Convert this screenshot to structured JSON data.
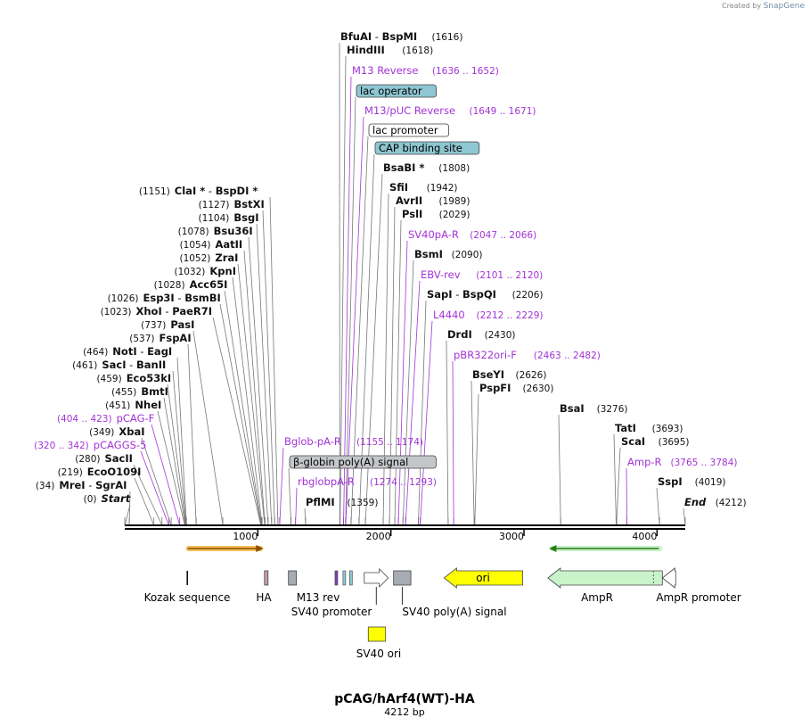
{
  "credit": {
    "prefix": "Created by",
    "brand": "SnapGene"
  },
  "title": "pCAG/hArf4(WT)-HA",
  "subtitle": "4212 bp",
  "sequence": {
    "length": 4212
  },
  "ruler": [
    {
      "bp": 1000,
      "label": "1000"
    },
    {
      "bp": 2000,
      "label": "2000"
    },
    {
      "bp": 3000,
      "label": "3000"
    },
    {
      "bp": 4000,
      "label": "4000"
    }
  ],
  "colors": {
    "enzyme": "#111111",
    "primer": "#a333d6",
    "line": "#777777",
    "feature_blue": "#8ec6d2",
    "feature_grey": "#c4c6ca",
    "amp_green": "#c9f3c9",
    "ori_yellow": "#ffff00"
  },
  "left_labels": [
    {
      "kind": "enzyme",
      "num": "(0)",
      "parts": [
        {
          "t": "Start",
          "i": true
        }
      ],
      "pos": 0
    },
    {
      "kind": "enzyme",
      "num": "(34)",
      "parts": [
        {
          "t": "MreI"
        },
        {
          "t": " - ",
          "s": true
        },
        {
          "t": "SgrAI"
        }
      ],
      "pos": 34
    },
    {
      "kind": "enzyme",
      "num": "(219)",
      "parts": [
        {
          "t": "EcoO109I"
        }
      ],
      "pos": 219
    },
    {
      "kind": "enzyme",
      "num": "(280)",
      "parts": [
        {
          "t": "SacII"
        }
      ],
      "pos": 280
    },
    {
      "kind": "primer",
      "num": "(320 .. 342)",
      "parts": [
        {
          "t": "pCAGGS-5"
        }
      ],
      "pos": 331
    },
    {
      "kind": "enzyme",
      "num": "(349)",
      "parts": [
        {
          "t": "XbaI"
        }
      ],
      "pos": 349
    },
    {
      "kind": "primer",
      "num": "(404 .. 423)",
      "parts": [
        {
          "t": "pCAG-F"
        }
      ],
      "pos": 413
    },
    {
      "kind": "enzyme",
      "num": "(451)",
      "parts": [
        {
          "t": "NheI"
        }
      ],
      "pos": 451
    },
    {
      "kind": "enzyme",
      "num": "(455)",
      "parts": [
        {
          "t": "BmtI"
        }
      ],
      "pos": 455
    },
    {
      "kind": "enzyme",
      "num": "(459)",
      "parts": [
        {
          "t": "Eco53kI"
        }
      ],
      "pos": 459
    },
    {
      "kind": "enzyme",
      "num": "(461)",
      "parts": [
        {
          "t": "SacI"
        },
        {
          "t": " - ",
          "s": true
        },
        {
          "t": "BanII"
        }
      ],
      "pos": 461
    },
    {
      "kind": "enzyme",
      "num": "(464)",
      "parts": [
        {
          "t": "NotI"
        },
        {
          "t": " - ",
          "s": true
        },
        {
          "t": "EagI"
        }
      ],
      "pos": 464
    },
    {
      "kind": "enzyme",
      "num": "(537)",
      "parts": [
        {
          "t": "FspAI"
        }
      ],
      "pos": 537
    },
    {
      "kind": "enzyme",
      "num": "(737)",
      "parts": [
        {
          "t": "PasI"
        }
      ],
      "pos": 737
    },
    {
      "kind": "enzyme",
      "num": "(1023)",
      "parts": [
        {
          "t": "XhoI"
        },
        {
          "t": " - ",
          "s": true
        },
        {
          "t": "PaeR7I"
        }
      ],
      "pos": 1023
    },
    {
      "kind": "enzyme",
      "num": "(1026)",
      "parts": [
        {
          "t": "Esp3I"
        },
        {
          "t": " - ",
          "s": true
        },
        {
          "t": "BsmBI"
        }
      ],
      "pos": 1026
    },
    {
      "kind": "enzyme",
      "num": "(1028)",
      "parts": [
        {
          "t": "Acc65I"
        }
      ],
      "pos": 1028
    },
    {
      "kind": "enzyme",
      "num": "(1032)",
      "parts": [
        {
          "t": "KpnI"
        }
      ],
      "pos": 1032
    },
    {
      "kind": "enzyme",
      "num": "(1052)",
      "parts": [
        {
          "t": "ZraI"
        }
      ],
      "pos": 1052
    },
    {
      "kind": "enzyme",
      "num": "(1054)",
      "parts": [
        {
          "t": "AatII"
        }
      ],
      "pos": 1054
    },
    {
      "kind": "enzyme",
      "num": "(1078)",
      "parts": [
        {
          "t": "Bsu36I"
        }
      ],
      "pos": 1078
    },
    {
      "kind": "enzyme",
      "num": "(1104)",
      "parts": [
        {
          "t": "BsgI"
        }
      ],
      "pos": 1104
    },
    {
      "kind": "enzyme",
      "num": "(1127)",
      "parts": [
        {
          "t": "BstXI"
        }
      ],
      "pos": 1127
    },
    {
      "kind": "enzyme",
      "num": "(1151)",
      "parts": [
        {
          "t": "ClaI *"
        },
        {
          "t": " - ",
          "s": true
        },
        {
          "t": "BspDI *"
        }
      ],
      "pos": 1151
    }
  ],
  "right_labels": [
    {
      "kind": "enzyme",
      "parts": [
        {
          "t": "BfuAI"
        },
        {
          "t": " - ",
          "s": true
        },
        {
          "t": "BspMI"
        }
      ],
      "num": "(1616)",
      "pos": 1616
    },
    {
      "kind": "enzyme",
      "parts": [
        {
          "t": "HindIII"
        }
      ],
      "num": "(1618)",
      "pos": 1618
    },
    {
      "kind": "primer",
      "parts": [
        {
          "t": "M13 Reverse"
        }
      ],
      "num": "(1636 .. 1652)",
      "pos": 1644
    },
    {
      "kind": "box",
      "style": "blue",
      "parts": [
        {
          "t": "lac operator"
        }
      ],
      "pos": 1659
    },
    {
      "kind": "primer",
      "parts": [
        {
          "t": "M13/pUC Reverse"
        }
      ],
      "num": "(1649 .. 1671)",
      "pos": 1660
    },
    {
      "kind": "box",
      "style": "white",
      "parts": [
        {
          "t": "lac promoter"
        }
      ],
      "pos": 1700
    },
    {
      "kind": "box",
      "style": "blue",
      "parts": [
        {
          "t": "CAP binding site"
        }
      ],
      "pos": 1760
    },
    {
      "kind": "enzyme",
      "parts": [
        {
          "t": "BsaBI *"
        }
      ],
      "num": "(1808)",
      "pos": 1808
    },
    {
      "kind": "enzyme",
      "parts": [
        {
          "t": "SfiI"
        }
      ],
      "num": "(1942)",
      "pos": 1942
    },
    {
      "kind": "enzyme",
      "parts": [
        {
          "t": "AvrII"
        }
      ],
      "num": "(1989)",
      "pos": 1989
    },
    {
      "kind": "enzyme",
      "parts": [
        {
          "t": "PslI"
        }
      ],
      "num": "(2029)",
      "pos": 2029
    },
    {
      "kind": "primer",
      "parts": [
        {
          "t": "SV40pA-R"
        }
      ],
      "num": "(2047 .. 2066)",
      "pos": 2056
    },
    {
      "kind": "enzyme",
      "parts": [
        {
          "t": "BsmI"
        }
      ],
      "num": "(2090)",
      "pos": 2090
    },
    {
      "kind": "primer",
      "parts": [
        {
          "t": "EBV-rev"
        }
      ],
      "num": "(2101 .. 2120)",
      "pos": 2110
    },
    {
      "kind": "enzyme",
      "parts": [
        {
          "t": "SapI"
        },
        {
          "t": " - ",
          "s": true
        },
        {
          "t": "BspQI"
        }
      ],
      "num": "(2206)",
      "pos": 2206
    },
    {
      "kind": "primer",
      "parts": [
        {
          "t": "L4440"
        }
      ],
      "num": "(2212 .. 2229)",
      "pos": 2220
    },
    {
      "kind": "enzyme",
      "parts": [
        {
          "t": "DrdI"
        }
      ],
      "num": "(2430)",
      "pos": 2430
    },
    {
      "kind": "primer",
      "parts": [
        {
          "t": "pBR322ori-F"
        }
      ],
      "num": "(2463 .. 2482)",
      "pos": 2472
    },
    {
      "kind": "enzyme",
      "parts": [
        {
          "t": "BseYI"
        }
      ],
      "num": "(2626)",
      "pos": 2626
    },
    {
      "kind": "enzyme",
      "parts": [
        {
          "t": "PspFI"
        }
      ],
      "num": "(2630)",
      "pos": 2630
    },
    {
      "kind": "enzyme",
      "parts": [
        {
          "t": "BsaI"
        }
      ],
      "num": "(3276)",
      "pos": 3276
    },
    {
      "kind": "enzyme",
      "parts": [
        {
          "t": "TatI"
        }
      ],
      "num": "(3693)",
      "pos": 3693
    },
    {
      "kind": "enzyme",
      "parts": [
        {
          "t": "ScaI"
        }
      ],
      "num": "(3695)",
      "pos": 3695
    },
    {
      "kind": "primer",
      "parts": [
        {
          "t": "Amp-R"
        }
      ],
      "num": "(3765 .. 3784)",
      "pos": 3774
    },
    {
      "kind": "enzyme",
      "parts": [
        {
          "t": "SspI"
        }
      ],
      "num": "(4019)",
      "pos": 4019
    },
    {
      "kind": "enzyme",
      "parts": [
        {
          "t": "End",
          "i": true
        }
      ],
      "num": "(4212)",
      "pos": 4212
    }
  ],
  "inner_labels": [
    {
      "kind": "primer",
      "parts": [
        {
          "t": "Bglob-pA-R"
        }
      ],
      "num": "(1155 .. 1174)",
      "pos": 1164
    },
    {
      "kind": "box",
      "style": "grey",
      "parts": [
        {
          "t": "β-globin poly(A) signal"
        }
      ],
      "pos": 1250
    },
    {
      "kind": "primer",
      "parts": [
        {
          "t": "rbglobpA-R"
        }
      ],
      "num": "(1274 .. 1293)",
      "pos": 1283
    },
    {
      "kind": "enzyme",
      "parts": [
        {
          "t": "PflMI"
        }
      ],
      "num": "(1359)",
      "pos": 1359
    }
  ],
  "features_below": [
    {
      "name": "Kozak sequence",
      "shape": "line",
      "start": 470,
      "end": 480
    },
    {
      "name": "HA",
      "shape": "box",
      "start": 1050,
      "end": 1070,
      "color": "#c99ca6"
    },
    {
      "name": "M13 rev",
      "shape": "box",
      "start": 1230,
      "end": 1290,
      "color": "#a7acb3"
    },
    {
      "name": "SV40 promoter",
      "shape": "arrow-right",
      "start": 1800,
      "end": 1980,
      "color": "#ffffff"
    },
    {
      "name": "SV40 poly(A) signal",
      "shape": "box",
      "start": 2020,
      "end": 2150,
      "color": "#a7acb3"
    },
    {
      "name": "ori",
      "shape": "arrow-left",
      "start": 2400,
      "end": 2990,
      "color": "#ffff00"
    },
    {
      "name": "AmpR",
      "shape": "arrow-left",
      "start": 3180,
      "end": 4040,
      "color": "#c9f3c9"
    },
    {
      "name": "AmpR promoter",
      "shape": "arrow-left-small",
      "start": 4040,
      "end": 4140,
      "color": "#ffffff"
    },
    {
      "name": "SV40 ori",
      "shape": "box",
      "start": 1830,
      "end": 1960,
      "color": "#ffff00"
    }
  ],
  "small_marks": [
    {
      "name": "lac-operator-mark",
      "start": 1640,
      "end": 1660,
      "color": "#8ec6d2"
    },
    {
      "name": "cap-mark",
      "start": 1690,
      "end": 1710,
      "color": "#8ec6d2"
    },
    {
      "name": "primer-mark",
      "start": 1580,
      "end": 1600,
      "color": "#7b3fb0"
    }
  ],
  "top_arrows": [
    {
      "name": "orange-cds-arrow",
      "start": 460,
      "end": 1040,
      "dir": "right",
      "color": "#f5c15a"
    },
    {
      "name": "green-cds-arrow",
      "start": 3190,
      "end": 4040,
      "dir": "left",
      "color": "#c9f3c9"
    }
  ]
}
